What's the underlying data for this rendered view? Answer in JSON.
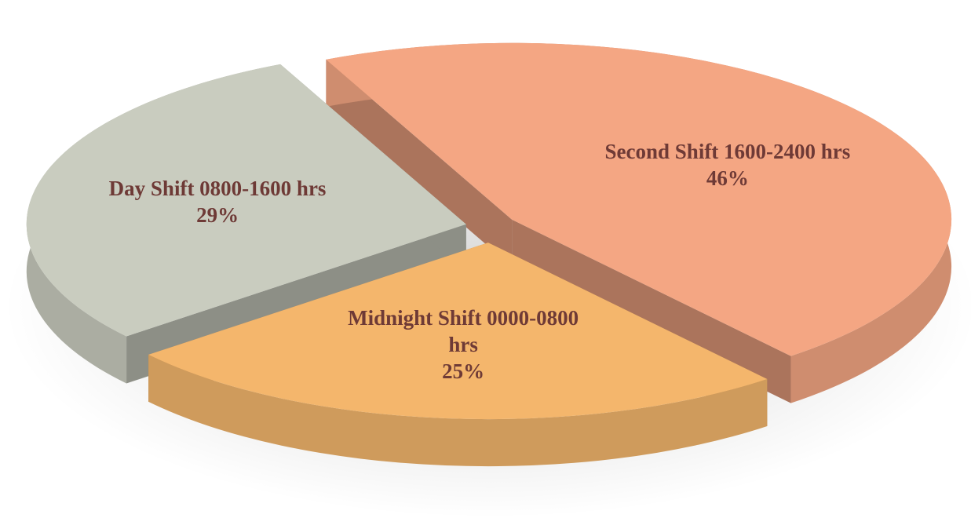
{
  "chart_data": {
    "type": "pie",
    "categories": [
      "Day Shift 0800-1600 hrs",
      "Second Shift 1600-2400 hrs",
      "Midnight Shift 0000-0800 hrs"
    ],
    "values": [
      29,
      46,
      25
    ],
    "value_labels": [
      "29%",
      "46%",
      "25%"
    ],
    "colors": [
      "#c9ccbf",
      "#f4a683",
      "#f4b66c"
    ]
  }
}
